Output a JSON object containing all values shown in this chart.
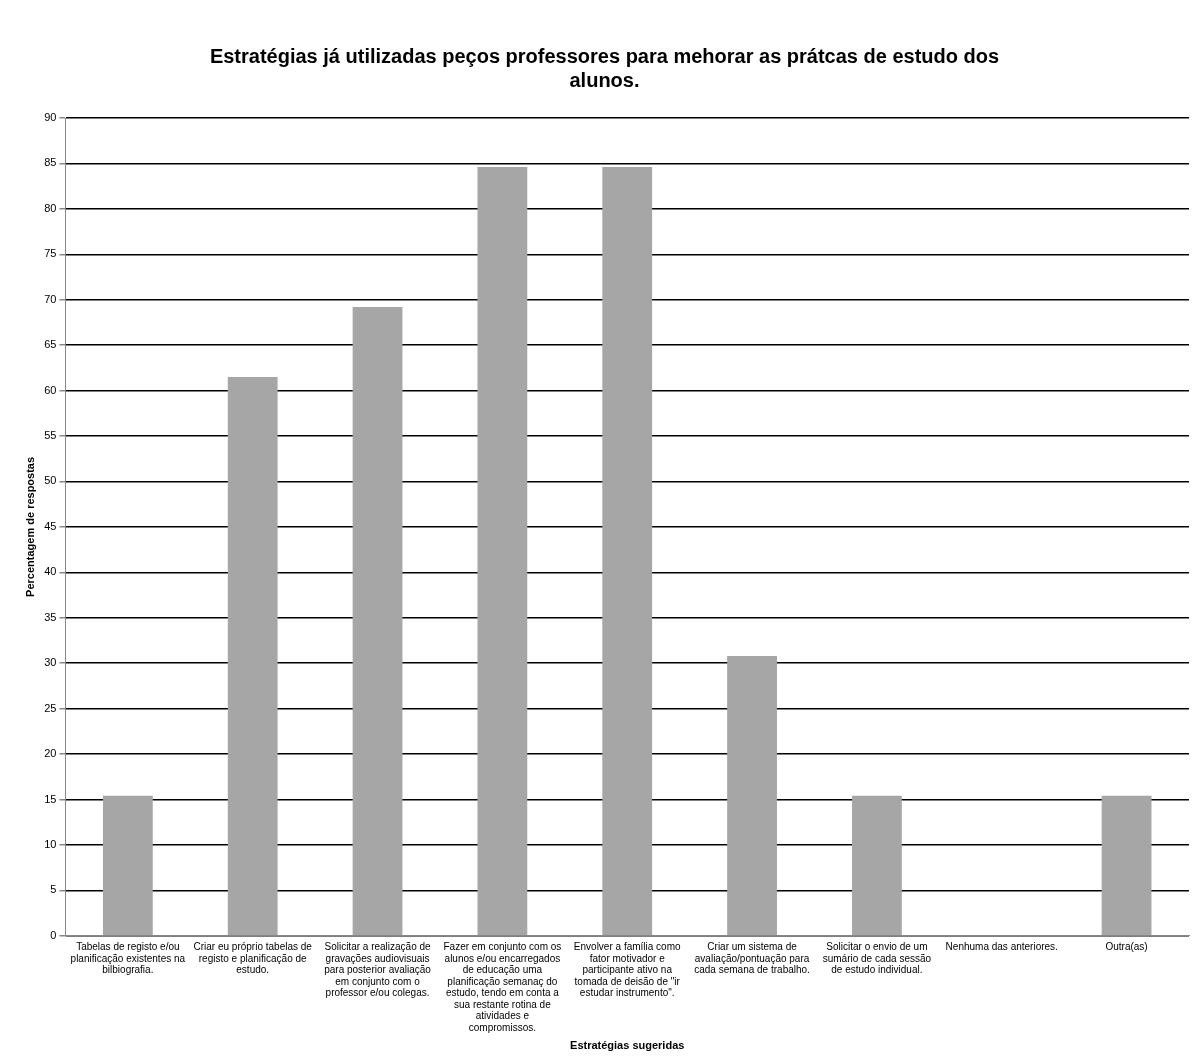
{
  "chart_data": {
    "type": "bar",
    "title": "Estratégias já utilizadas peços professores para mehorar as prátcas de estudo dos alunos.",
    "xlabel": "Estratégias sugeridas",
    "ylabel": "Percentagem de respostas",
    "categories": [
      "Tabelas de registo e/ou planificação existentes na bilbiografia.",
      "Criar eu próprio tabelas de registo e planificação de estudo.",
      "Solicitar a realização de gravações audiovisuais para posterior avaliação em conjunto com o professor e/ou colegas.",
      "Fazer em conjunto com os alunos e/ou encarregados de educação uma planificação semanaç do estudo, tendo em conta a sua restante rotina de atividades e compromissos.",
      "Envolver a família como fator motivador e participante ativo na tomada de deisão de \"ir estudar instrumento\".",
      "Criar um sistema de avaliação/pontuação para cada semana de trabalho.",
      "Solicitar o envio de um sumário de cada sessão de estudo individual.",
      "Nenhuma das anteriores.",
      "Outra(as)"
    ],
    "values": [
      15.4,
      61.5,
      69.2,
      84.6,
      84.6,
      30.8,
      15.4,
      0,
      15.4
    ],
    "color": "#a6a6a6",
    "ylim": [
      0,
      90
    ],
    "yticks": [
      0,
      5,
      10,
      15,
      20,
      25,
      30,
      35,
      40,
      45,
      50,
      55,
      60,
      65,
      70,
      75,
      80,
      85,
      90
    ],
    "grid": "y",
    "legend": false
  }
}
